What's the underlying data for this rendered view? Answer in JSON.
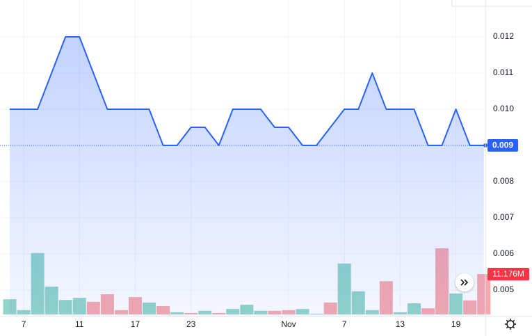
{
  "chart_data": {
    "type": "area",
    "color": "#2962ff",
    "categories": [
      null,
      "7",
      null,
      null,
      null,
      "11",
      null,
      null,
      null,
      "17",
      null,
      null,
      null,
      "23",
      null,
      null,
      null,
      null,
      null,
      null,
      "Nov",
      null,
      null,
      null,
      "7",
      null,
      null,
      null,
      "13",
      null,
      null,
      null,
      "19",
      null,
      null
    ],
    "values": [
      0.01,
      0.01,
      0.01,
      0.011,
      0.012,
      0.012,
      0.011,
      0.01,
      0.01,
      0.01,
      0.01,
      0.009,
      0.009,
      0.0095,
      0.0095,
      0.009,
      0.01,
      0.01,
      0.01,
      0.0095,
      0.0095,
      0.009,
      0.009,
      0.0095,
      0.01,
      0.01,
      0.011,
      0.01,
      0.01,
      0.01,
      0.009,
      0.009,
      0.01,
      0.009,
      0.009
    ],
    "ylim": [
      0.00427,
      0.01302
    ],
    "yticks": [
      0.005,
      0.006,
      0.007,
      0.008,
      0.009,
      {
        "value": 0.01,
        "label": "0.010"
      },
      0.011,
      0.012
    ],
    "grid": true,
    "volume": {
      "values": [
        4.2,
        1.2,
        17.0,
        7.7,
        4.0,
        4.6,
        3.5,
        5.6,
        1.2,
        4.8,
        3.3,
        2.3,
        0.6,
        0.4,
        1.0,
        0.4,
        1.5,
        2.7,
        1.0,
        1.0,
        1.2,
        1.5,
        0.2,
        3.3,
        14.1,
        6.4,
        1.2,
        9.2,
        0.6,
        3.1,
        1.7,
        18.3,
        5.8,
        3.9,
        11.176
      ],
      "value_labels": [
        null,
        null,
        null,
        null,
        null,
        null,
        null,
        null,
        null,
        null,
        null,
        null,
        null,
        null,
        null,
        null,
        null,
        null,
        null,
        null,
        null,
        null,
        null,
        null,
        null,
        null,
        null,
        null,
        null,
        null,
        null,
        null,
        null,
        null,
        "11.176M"
      ],
      "colors": [
        "#92d4c9",
        "#92d4c9",
        "#92d4c9",
        "#92d4c9",
        "#92d4c9",
        "#92d4c9",
        "#f7a8ae",
        "#f7a8ae",
        "#f7a8ae",
        "#f7a8ae",
        "#92d4c9",
        "#f7a8ae",
        "#92d4c9",
        "#f7a8ae",
        "#92d4c9",
        "#f7a8ae",
        "#92d4c9",
        "#92d4c9",
        "#92d4c9",
        "#f7a8ae",
        "#f7a8ae",
        "#92d4c9",
        "#92d4c9",
        "#f7a8ae",
        "#92d4c9",
        "#92d4c9",
        "#92d4c9",
        "#f7a8ae",
        "#92d4c9",
        "#92d4c9",
        "#f7a8ae",
        "#f7a8ae",
        "#92d4c9",
        "#f7a8ae",
        "#f7a8ae"
      ]
    }
  }
}
